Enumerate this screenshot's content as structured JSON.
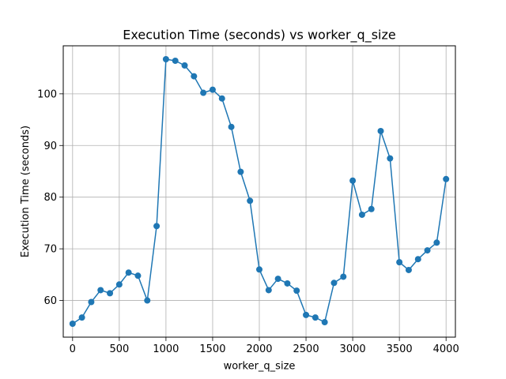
{
  "chart_data": {
    "type": "line",
    "title": "Execution Time (seconds) vs worker_q_size",
    "xlabel": "worker_q_size",
    "ylabel": "Execution Time (seconds)",
    "xlim": [
      -100,
      4100
    ],
    "ylim": [
      52.9,
      109.3
    ],
    "xticks": [
      0,
      500,
      1000,
      1500,
      2000,
      2500,
      3000,
      3500,
      4000
    ],
    "yticks": [
      60,
      70,
      80,
      90,
      100
    ],
    "grid": true,
    "series_color": "#1f77b4",
    "x": [
      0,
      100,
      200,
      300,
      400,
      500,
      600,
      700,
      800,
      900,
      1000,
      1100,
      1200,
      1300,
      1400,
      1500,
      1600,
      1700,
      1800,
      1900,
      2000,
      2100,
      2200,
      2300,
      2400,
      2500,
      2600,
      2700,
      2800,
      2900,
      3000,
      3100,
      3200,
      3300,
      3400,
      3500,
      3600,
      3700,
      3800,
      3900,
      4000
    ],
    "y": [
      55.5,
      56.7,
      59.7,
      62.0,
      61.4,
      63.1,
      65.4,
      64.8,
      60.0,
      74.4,
      106.7,
      106.4,
      105.5,
      103.4,
      100.2,
      100.8,
      99.1,
      93.6,
      84.9,
      79.3,
      66.0,
      62.0,
      64.2,
      63.3,
      61.9,
      57.2,
      56.7,
      55.8,
      63.4,
      64.6,
      83.2,
      76.6,
      77.7,
      92.8,
      87.5,
      67.4,
      65.9,
      68.0,
      69.7,
      71.2,
      83.5
    ]
  }
}
